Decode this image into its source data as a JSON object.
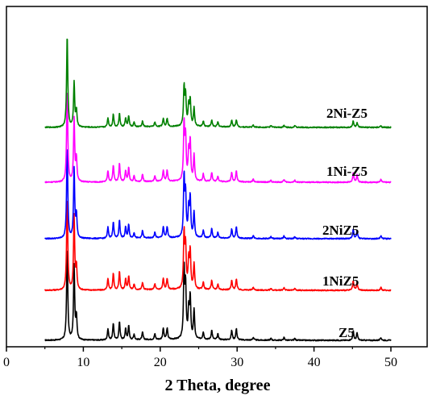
{
  "chart_data": {
    "type": "line",
    "title": "",
    "xlabel": "2 Theta, degree",
    "ylabel": "",
    "xlim": [
      0,
      50
    ],
    "xticks": [
      0,
      10,
      20,
      30,
      40,
      50
    ],
    "grid": false,
    "legend": "inline labels at right end of each trace",
    "series": [
      {
        "name": "Z5",
        "color": "#000000",
        "offset": 0,
        "peaks": [
          [
            7.9,
            1.0
          ],
          [
            8.8,
            0.8
          ],
          [
            9.1,
            0.25
          ],
          [
            13.2,
            0.12
          ],
          [
            13.9,
            0.18
          ],
          [
            14.7,
            0.2
          ],
          [
            15.5,
            0.12
          ],
          [
            15.9,
            0.15
          ],
          [
            16.6,
            0.06
          ],
          [
            17.7,
            0.08
          ],
          [
            19.3,
            0.06
          ],
          [
            20.4,
            0.12
          ],
          [
            20.9,
            0.12
          ],
          [
            23.1,
            0.75
          ],
          [
            23.3,
            0.55
          ],
          [
            23.7,
            0.3
          ],
          [
            23.9,
            0.45
          ],
          [
            24.4,
            0.32
          ],
          [
            25.6,
            0.08
          ],
          [
            26.7,
            0.1
          ],
          [
            27.5,
            0.06
          ],
          [
            29.3,
            0.1
          ],
          [
            29.9,
            0.12
          ],
          [
            32.1,
            0.03
          ],
          [
            34.4,
            0.02
          ],
          [
            36.1,
            0.03
          ],
          [
            37.5,
            0.02
          ],
          [
            45.1,
            0.1
          ],
          [
            45.6,
            0.08
          ],
          [
            48.7,
            0.03
          ]
        ]
      },
      {
        "name": "1NiZ5",
        "color": "#ff0000",
        "offset": 1,
        "peaks": [
          [
            7.9,
            1.0
          ],
          [
            8.8,
            0.8
          ],
          [
            9.1,
            0.25
          ],
          [
            13.2,
            0.12
          ],
          [
            13.9,
            0.18
          ],
          [
            14.7,
            0.2
          ],
          [
            15.5,
            0.12
          ],
          [
            15.9,
            0.15
          ],
          [
            16.6,
            0.06
          ],
          [
            17.7,
            0.08
          ],
          [
            19.3,
            0.06
          ],
          [
            20.4,
            0.12
          ],
          [
            20.9,
            0.12
          ],
          [
            23.1,
            0.6
          ],
          [
            23.3,
            0.45
          ],
          [
            23.7,
            0.3
          ],
          [
            23.9,
            0.4
          ],
          [
            24.4,
            0.28
          ],
          [
            25.6,
            0.08
          ],
          [
            26.7,
            0.1
          ],
          [
            27.5,
            0.06
          ],
          [
            29.3,
            0.1
          ],
          [
            29.9,
            0.12
          ],
          [
            32.1,
            0.03
          ],
          [
            34.4,
            0.02
          ],
          [
            36.1,
            0.03
          ],
          [
            37.5,
            0.02
          ],
          [
            45.1,
            0.1
          ],
          [
            45.6,
            0.08
          ],
          [
            48.7,
            0.03
          ]
        ]
      },
      {
        "name": "2NiZ5",
        "color": "#0000ff",
        "offset": 2,
        "peaks": [
          [
            7.9,
            1.0
          ],
          [
            8.8,
            0.75
          ],
          [
            9.1,
            0.25
          ],
          [
            13.2,
            0.12
          ],
          [
            13.9,
            0.18
          ],
          [
            14.7,
            0.2
          ],
          [
            15.5,
            0.12
          ],
          [
            15.9,
            0.15
          ],
          [
            16.6,
            0.06
          ],
          [
            17.7,
            0.08
          ],
          [
            19.3,
            0.06
          ],
          [
            20.4,
            0.12
          ],
          [
            20.9,
            0.12
          ],
          [
            23.1,
            0.65
          ],
          [
            23.3,
            0.45
          ],
          [
            23.7,
            0.3
          ],
          [
            23.9,
            0.42
          ],
          [
            24.4,
            0.28
          ],
          [
            25.6,
            0.08
          ],
          [
            26.7,
            0.1
          ],
          [
            27.5,
            0.06
          ],
          [
            29.3,
            0.1
          ],
          [
            29.9,
            0.12
          ],
          [
            32.1,
            0.03
          ],
          [
            34.4,
            0.02
          ],
          [
            36.1,
            0.03
          ],
          [
            37.5,
            0.02
          ],
          [
            45.1,
            0.1
          ],
          [
            45.6,
            0.08
          ],
          [
            48.7,
            0.03
          ]
        ]
      },
      {
        "name": "1Ni-Z5",
        "color": "#ff00ff",
        "offset": 3,
        "peaks": [
          [
            7.9,
            1.0
          ],
          [
            8.8,
            0.68
          ],
          [
            9.1,
            0.25
          ],
          [
            13.2,
            0.12
          ],
          [
            13.9,
            0.18
          ],
          [
            14.7,
            0.2
          ],
          [
            15.5,
            0.12
          ],
          [
            15.9,
            0.15
          ],
          [
            16.6,
            0.06
          ],
          [
            17.7,
            0.08
          ],
          [
            19.3,
            0.06
          ],
          [
            20.4,
            0.12
          ],
          [
            20.9,
            0.12
          ],
          [
            23.1,
            0.62
          ],
          [
            23.3,
            0.45
          ],
          [
            23.7,
            0.3
          ],
          [
            23.9,
            0.42
          ],
          [
            24.4,
            0.28
          ],
          [
            25.6,
            0.08
          ],
          [
            26.7,
            0.1
          ],
          [
            27.5,
            0.06
          ],
          [
            29.3,
            0.1
          ],
          [
            29.9,
            0.12
          ],
          [
            32.1,
            0.03
          ],
          [
            34.4,
            0.02
          ],
          [
            36.1,
            0.03
          ],
          [
            37.5,
            0.02
          ],
          [
            45.1,
            0.1
          ],
          [
            45.6,
            0.08
          ],
          [
            48.7,
            0.03
          ]
        ]
      },
      {
        "name": "2Ni-Z5",
        "color": "#008000",
        "offset": 4,
        "peaks": [
          [
            7.9,
            1.0
          ],
          [
            8.8,
            0.48
          ],
          [
            9.1,
            0.18
          ],
          [
            13.2,
            0.1
          ],
          [
            13.9,
            0.14
          ],
          [
            14.7,
            0.15
          ],
          [
            15.5,
            0.1
          ],
          [
            15.9,
            0.12
          ],
          [
            16.6,
            0.05
          ],
          [
            17.7,
            0.06
          ],
          [
            19.3,
            0.05
          ],
          [
            20.4,
            0.09
          ],
          [
            20.9,
            0.09
          ],
          [
            23.1,
            0.42
          ],
          [
            23.3,
            0.32
          ],
          [
            23.7,
            0.22
          ],
          [
            23.9,
            0.28
          ],
          [
            24.4,
            0.2
          ],
          [
            25.6,
            0.06
          ],
          [
            26.7,
            0.07
          ],
          [
            27.5,
            0.05
          ],
          [
            29.3,
            0.07
          ],
          [
            29.9,
            0.08
          ],
          [
            32.1,
            0.02
          ],
          [
            34.4,
            0.02
          ],
          [
            36.1,
            0.02
          ],
          [
            37.5,
            0.02
          ],
          [
            45.1,
            0.07
          ],
          [
            45.6,
            0.05
          ],
          [
            48.7,
            0.02
          ]
        ]
      }
    ]
  }
}
